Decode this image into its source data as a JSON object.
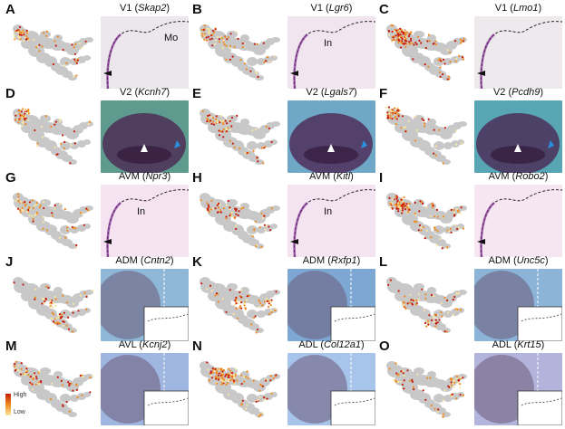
{
  "panels": [
    {
      "letter": "A",
      "region": "V1",
      "gene": "Skap2",
      "labels": [
        "Mo"
      ],
      "style": "section",
      "bg": "#ece7ec"
    },
    {
      "letter": "B",
      "region": "V1",
      "gene": "Lgr6",
      "labels": [
        "In"
      ],
      "style": "section",
      "bg": "#f1e5f0"
    },
    {
      "letter": "C",
      "region": "V1",
      "gene": "Lmo1",
      "labels": [],
      "style": "section",
      "bg": "#ede9ed"
    },
    {
      "letter": "D",
      "region": "V2",
      "gene": "Kcnh7",
      "labels": [],
      "style": "wholemount",
      "bg": "#5f9a8e"
    },
    {
      "letter": "E",
      "region": "V2",
      "gene": "Lgals7",
      "labels": [],
      "style": "wholemount",
      "bg": "#6fa8c6"
    },
    {
      "letter": "F",
      "region": "V2",
      "gene": "Pcdh9",
      "labels": [],
      "style": "wholemount",
      "bg": "#58a6b4"
    },
    {
      "letter": "G",
      "region": "AVM",
      "gene": "Npr3",
      "labels": [
        "In"
      ],
      "style": "section",
      "bg": "#f5e3f1"
    },
    {
      "letter": "H",
      "region": "AVM",
      "gene": "Kitl",
      "labels": [
        "In"
      ],
      "style": "section",
      "bg": "#f4e3f0"
    },
    {
      "letter": "I",
      "region": "AVM",
      "gene": "Robo2",
      "labels": [],
      "style": "section",
      "bg": "#f5e6f2"
    },
    {
      "letter": "J",
      "region": "ADM",
      "gene": "Cntn2",
      "labels": [],
      "style": "side",
      "bg": "#8fb8d8"
    },
    {
      "letter": "K",
      "region": "ADM",
      "gene": "Rxfp1",
      "labels": [],
      "style": "side",
      "bg": "#7ea8d4"
    },
    {
      "letter": "L",
      "region": "ADM",
      "gene": "Unc5c",
      "labels": [],
      "style": "side",
      "bg": "#8cb4d8"
    },
    {
      "letter": "M",
      "region": "AVL",
      "gene": "Kcnj2",
      "labels": [],
      "style": "side",
      "bg": "#9fb6e0"
    },
    {
      "letter": "N",
      "region": "ADL",
      "gene": "Col12a1",
      "labels": [],
      "style": "side",
      "bg": "#a7c4ea"
    },
    {
      "letter": "O",
      "region": "ADL",
      "gene": "Krt15",
      "labels": [],
      "style": "side",
      "bg": "#b2b4dc"
    }
  ],
  "legend": {
    "high": "High",
    "low": "Low"
  },
  "colors": {
    "high": "#c61a0a",
    "mid": "#f08a1d",
    "low": "#fbe7a0",
    "umap_base": "#c8c8c8",
    "stain": "#7a2a8c"
  }
}
